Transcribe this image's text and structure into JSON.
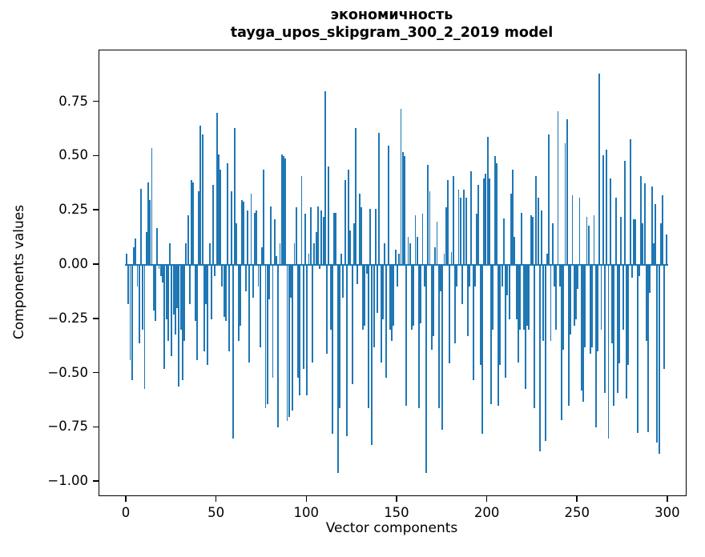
{
  "chart_data": {
    "type": "bar",
    "title": "экономичность",
    "subtitle": "tayga_upos_skipgram_300_2_2019 model",
    "xlabel": "Vector components",
    "ylabel": "Components values",
    "bar_color": "#1f77b4",
    "axis_color": "#000000",
    "legend": "none",
    "grid": false,
    "xticks": [
      0,
      50,
      100,
      150,
      200,
      250,
      300
    ],
    "yticks": [
      0.75,
      0.5,
      0.25,
      0,
      -0.25,
      -0.5,
      -0.75,
      -1
    ],
    "xlim": [
      -15,
      310
    ],
    "ylim": [
      -1.07,
      0.99
    ],
    "n_components": 300,
    "values": [
      0.05,
      -0.18,
      -0.44,
      -0.53,
      0.08,
      0.12,
      -0.1,
      -0.36,
      0.35,
      -0.3,
      -0.57,
      0.15,
      0.38,
      0.3,
      0.54,
      -0.21,
      -0.26,
      0.17,
      -0.02,
      -0.05,
      -0.08,
      -0.48,
      -0.25,
      -0.35,
      0.1,
      -0.42,
      -0.23,
      -0.32,
      -0.2,
      -0.56,
      -0.3,
      -0.53,
      -0.35,
      0.1,
      0.23,
      -0.18,
      0.39,
      0.38,
      -0.26,
      -0.44,
      0.34,
      0.64,
      0.6,
      -0.4,
      -0.18,
      -0.46,
      0.1,
      -0.25,
      0.37,
      -0.05,
      0.7,
      0.51,
      0.44,
      -0.1,
      -0.24,
      -0.26,
      0.47,
      -0.4,
      0.34,
      -0.8,
      0.63,
      0.19,
      -0.35,
      -0.28,
      0.3,
      0.29,
      -0.12,
      0.25,
      -0.45,
      0.33,
      -0.15,
      0.24,
      0.25,
      -0.1,
      -0.38,
      0.08,
      0.44,
      -0.66,
      -0.64,
      -0.16,
      0.27,
      -0.52,
      0.21,
      0.04,
      -0.75,
      0.1,
      0.51,
      0.5,
      0.49,
      -0.72,
      -0.7,
      -0.15,
      -0.67,
      0.1,
      0.265,
      -0.52,
      -0.6,
      0.41,
      -0.48,
      0.235,
      -0.6,
      0.05,
      0.265,
      -0.45,
      0.1,
      0.15,
      0.27,
      -0.02,
      0.25,
      0.22,
      0.8,
      -0.41,
      0.455,
      -0.3,
      -0.78,
      0.24,
      0.24,
      -0.96,
      -0.66,
      0.05,
      -0.15,
      0.39,
      -0.79,
      0.44,
      0.16,
      -0.55,
      0.19,
      0.63,
      -0.09,
      0.33,
      0.265,
      -0.3,
      -0.28,
      -0.04,
      -0.66,
      0.26,
      -0.83,
      -0.38,
      0.26,
      -0.22,
      0.61,
      -0.45,
      -0.25,
      0.1,
      -0.52,
      0.55,
      -0.3,
      -0.35,
      -0.28,
      0.07,
      -0.1,
      0.05,
      0.72,
      0.52,
      0.5,
      -0.65,
      0.13,
      0.1,
      -0.3,
      -0.28,
      0.23,
      0.13,
      -0.66,
      -0.27,
      0.235,
      -0.1,
      -0.96,
      0.46,
      0.34,
      -0.39,
      -0.33,
      0.08,
      0.2,
      -0.66,
      -0.12,
      -0.76,
      0.05,
      0.265,
      0.39,
      -0.455,
      0.06,
      0.41,
      -0.36,
      -0.1,
      0.345,
      0.31,
      -0.18,
      0.345,
      0.31,
      -0.33,
      -0.1,
      0.43,
      -0.53,
      -0.1,
      0.235,
      0.37,
      -0.46,
      -0.78,
      0.4,
      0.42,
      0.59,
      0.4,
      -0.64,
      -0.3,
      0.5,
      0.47,
      -0.65,
      -0.46,
      -0.1,
      0.215,
      -0.52,
      -0.14,
      -0.25,
      0.33,
      0.44,
      0.13,
      -0.25,
      -0.45,
      -0.3,
      0.24,
      -0.3,
      -0.57,
      -0.28,
      -0.3,
      0.23,
      0.22,
      -0.66,
      0.41,
      0.31,
      -0.86,
      0.25,
      -0.35,
      -0.81,
      0.05,
      0.6,
      -0.35,
      0.19,
      -0.1,
      -0.3,
      0.71,
      -0.1,
      -0.715,
      -0.39,
      0.56,
      0.67,
      -0.65,
      -0.32,
      0.32,
      -0.28,
      -0.25,
      -0.11,
      0.31,
      -0.58,
      -0.63,
      -0.38,
      0.22,
      0.18,
      -0.41,
      -0.38,
      0.23,
      -0.75,
      -0.4,
      0.88,
      -0.3,
      0.505,
      -0.59,
      0.53,
      -0.8,
      0.4,
      -0.36,
      -0.65,
      0.31,
      -0.59,
      -0.455,
      0.22,
      -0.3,
      0.48,
      -0.615,
      -0.46,
      0.58,
      -0.06,
      0.21,
      0.21,
      -0.775,
      -0.05,
      0.41,
      0.19,
      0.375,
      -0.35,
      -0.77,
      -0.13,
      0.36,
      0.1,
      0.28,
      -0.82,
      -0.87,
      0.19,
      0.32,
      -0.48,
      0.14
    ]
  }
}
